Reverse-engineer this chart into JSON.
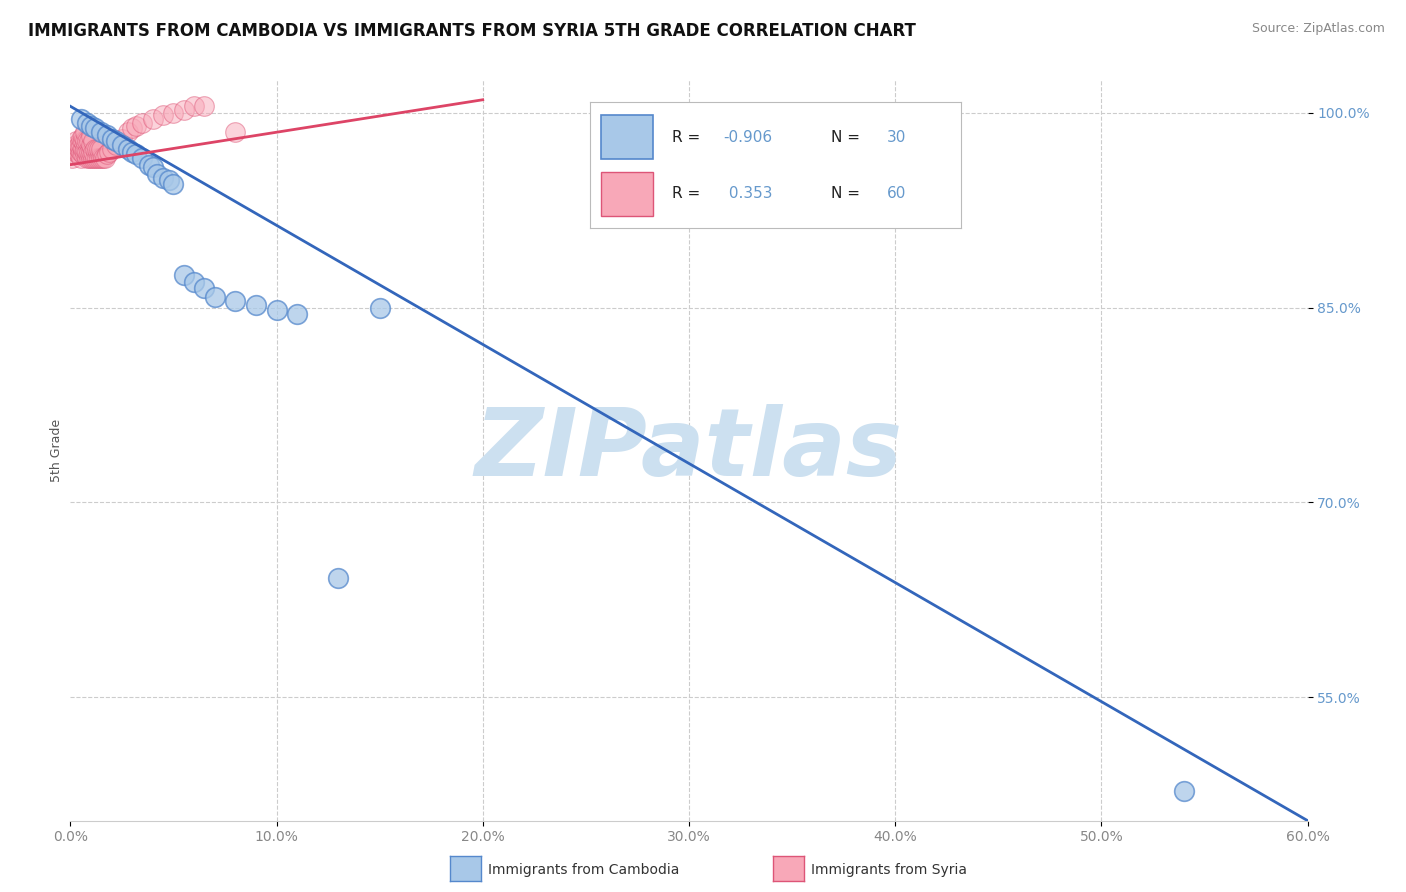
{
  "title": "IMMIGRANTS FROM CAMBODIA VS IMMIGRANTS FROM SYRIA 5TH GRADE CORRELATION CHART",
  "source": "Source: ZipAtlas.com",
  "ylabel": "5th Grade",
  "xlim": [
    0.0,
    0.6
  ],
  "ylim": [
    0.455,
    1.025
  ],
  "color_blue_fill": "#a8c8e8",
  "color_blue_edge": "#5588cc",
  "color_pink_fill": "#f8a8b8",
  "color_pink_edge": "#dd5577",
  "color_blue_line": "#3366bb",
  "color_pink_line": "#dd4466",
  "color_text_axis": "#6699cc",
  "color_text_black": "#222222",
  "color_grid": "#cccccc",
  "watermark_color": "#cce0f0",
  "title_fontsize": 12,
  "source_fontsize": 9,
  "axis_tick_fontsize": 10,
  "blue_scatter_x": [
    0.005,
    0.008,
    0.01,
    0.012,
    0.015,
    0.018,
    0.02,
    0.022,
    0.025,
    0.028,
    0.03,
    0.032,
    0.035,
    0.038,
    0.04,
    0.042,
    0.045,
    0.048,
    0.05,
    0.055,
    0.06,
    0.065,
    0.07,
    0.08,
    0.09,
    0.1,
    0.11,
    0.13,
    0.15,
    0.54
  ],
  "blue_scatter_y": [
    0.995,
    0.992,
    0.99,
    0.988,
    0.985,
    0.983,
    0.98,
    0.978,
    0.975,
    0.972,
    0.97,
    0.968,
    0.965,
    0.96,
    0.958,
    0.953,
    0.95,
    0.948,
    0.945,
    0.875,
    0.87,
    0.865,
    0.858,
    0.855,
    0.852,
    0.848,
    0.845,
    0.642,
    0.85,
    0.478
  ],
  "pink_scatter_x": [
    0.001,
    0.002,
    0.002,
    0.003,
    0.003,
    0.003,
    0.004,
    0.004,
    0.004,
    0.005,
    0.005,
    0.005,
    0.005,
    0.006,
    0.006,
    0.006,
    0.006,
    0.007,
    0.007,
    0.007,
    0.007,
    0.008,
    0.008,
    0.008,
    0.009,
    0.009,
    0.009,
    0.01,
    0.01,
    0.01,
    0.01,
    0.011,
    0.011,
    0.011,
    0.012,
    0.012,
    0.013,
    0.013,
    0.014,
    0.014,
    0.015,
    0.015,
    0.016,
    0.017,
    0.018,
    0.019,
    0.02,
    0.022,
    0.025,
    0.028,
    0.03,
    0.032,
    0.035,
    0.04,
    0.045,
    0.05,
    0.055,
    0.06,
    0.065,
    0.08
  ],
  "pink_scatter_y": [
    0.965,
    0.968,
    0.972,
    0.97,
    0.975,
    0.978,
    0.968,
    0.972,
    0.975,
    0.965,
    0.97,
    0.975,
    0.98,
    0.968,
    0.972,
    0.978,
    0.982,
    0.968,
    0.972,
    0.978,
    0.985,
    0.965,
    0.97,
    0.978,
    0.965,
    0.97,
    0.978,
    0.965,
    0.97,
    0.975,
    0.982,
    0.965,
    0.97,
    0.978,
    0.965,
    0.972,
    0.965,
    0.972,
    0.965,
    0.972,
    0.965,
    0.972,
    0.965,
    0.965,
    0.968,
    0.97,
    0.972,
    0.975,
    0.98,
    0.985,
    0.988,
    0.99,
    0.992,
    0.995,
    0.998,
    1.0,
    1.002,
    1.005,
    1.005,
    0.985
  ],
  "blue_line_x": [
    0.0,
    0.6
  ],
  "blue_line_y": [
    1.005,
    0.455
  ],
  "pink_line_x": [
    0.0,
    0.2
  ],
  "pink_line_y": [
    0.96,
    1.01
  ],
  "ytick_vals": [
    0.55,
    0.7,
    0.85,
    1.0
  ],
  "ytick_labels": [
    "55.0%",
    "70.0%",
    "85.0%",
    "100.0%"
  ],
  "xtick_vals": [
    0.0,
    0.1,
    0.2,
    0.3,
    0.4,
    0.5,
    0.6
  ],
  "xtick_labels": [
    "0.0%",
    "10.0%",
    "20.0%",
    "30.0%",
    "40.0%",
    "50.0%",
    "60.0%"
  ]
}
